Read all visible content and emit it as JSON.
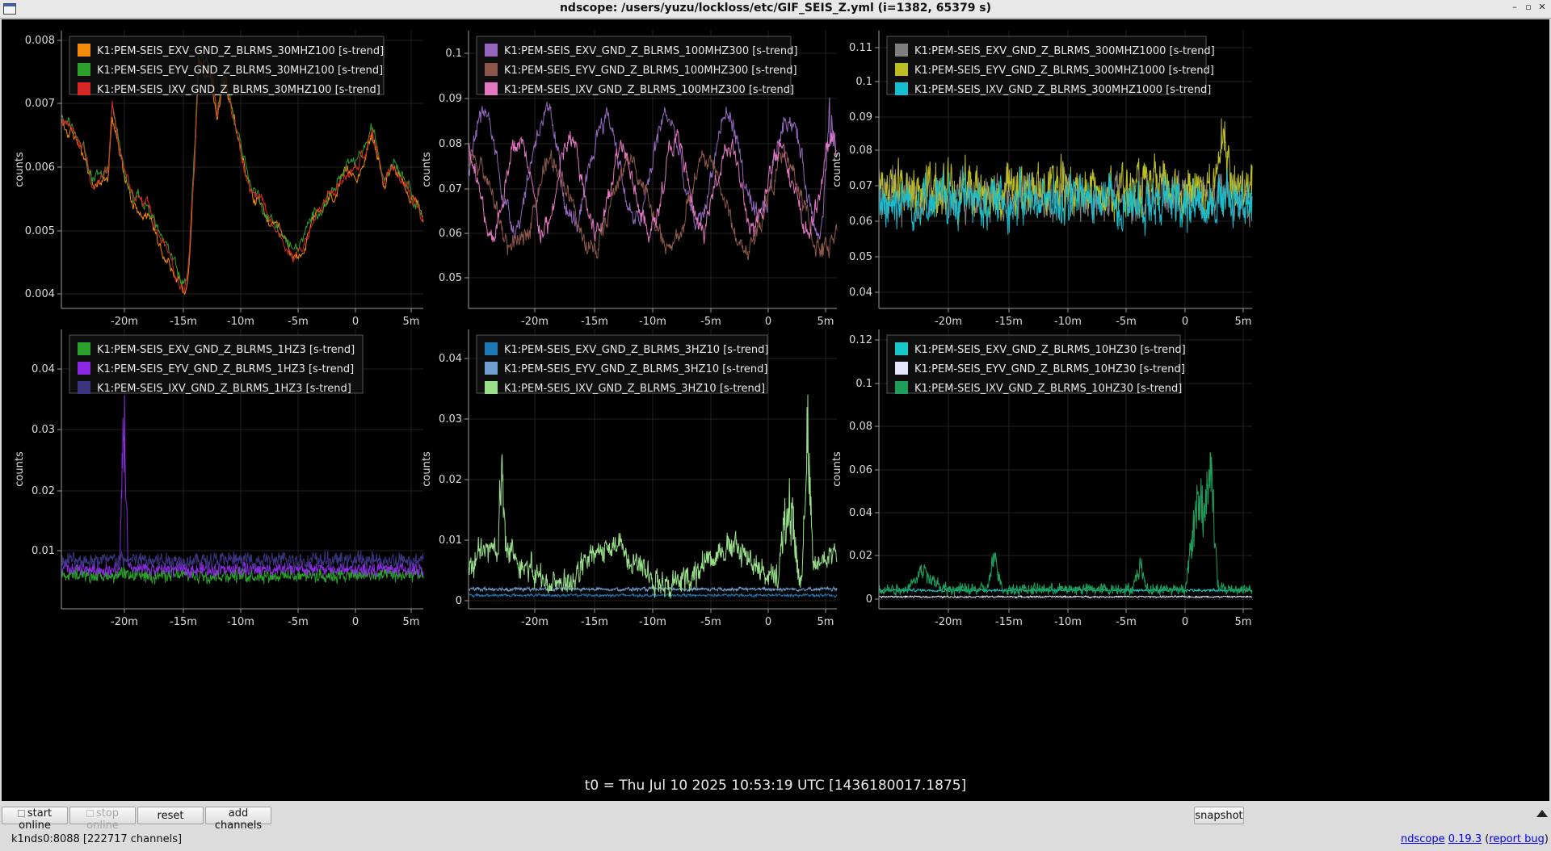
{
  "window": {
    "title": "ndscope: /users/yuzu/lockloss/etc/GIF_SEIS_Z.yml (i=1382, 65379 s)",
    "controls": [
      "–",
      "▫",
      "✕"
    ]
  },
  "plots": [
    {
      "ylabel": "counts",
      "yticks": [
        "0.004",
        "0.005",
        "0.006",
        "0.007",
        "0.008"
      ],
      "ylim": [
        0.00375,
        0.00805
      ],
      "xticks": [
        "-20m",
        "-15m",
        "-10m",
        "-5m",
        "0",
        "5m"
      ],
      "legend": [
        {
          "label": "K1:PEM-SEIS_EXV_GND_Z_BLRMS_30MHZ100 [s-trend]",
          "color": "#f58b0c"
        },
        {
          "label": "K1:PEM-SEIS_EYV_GND_Z_BLRMS_30MHZ100 [s-trend]",
          "color": "#2ca02c"
        },
        {
          "label": "K1:PEM-SEIS_IXV_GND_Z_BLRMS_30MHZ100 [s-trend]",
          "color": "#d62728"
        }
      ]
    },
    {
      "ylabel": "counts",
      "yticks": [
        "0.05",
        "0.06",
        "0.07",
        "0.08",
        "0.09",
        "0.1"
      ],
      "ylim": [
        0.043,
        0.105
      ],
      "xticks": [
        "-20m",
        "-15m",
        "-10m",
        "-5m",
        "0",
        "5m"
      ],
      "legend": [
        {
          "label": "K1:PEM-SEIS_EXV_GND_Z_BLRMS_100MHZ300 [s-trend]",
          "color": "#9467bd"
        },
        {
          "label": "K1:PEM-SEIS_EYV_GND_Z_BLRMS_100MHZ300 [s-trend]",
          "color": "#8c564b"
        },
        {
          "label": "K1:PEM-SEIS_IXV_GND_Z_BLRMS_100MHZ300 [s-trend]",
          "color": "#e377c2"
        }
      ]
    },
    {
      "ylabel": "counts",
      "yticks": [
        "0.04",
        "0.05",
        "0.06",
        "0.07",
        "0.08",
        "0.09",
        "0.1",
        "0.11"
      ],
      "ylim": [
        0.037,
        0.114
      ],
      "xticks": [
        "-20m",
        "-15m",
        "-10m",
        "-5m",
        "0",
        "5m"
      ],
      "legend": [
        {
          "label": "K1:PEM-SEIS_EXV_GND_Z_BLRMS_300MHZ1000 [s-trend]",
          "color": "#7f7f7f"
        },
        {
          "label": "K1:PEM-SEIS_EYV_GND_Z_BLRMS_300MHZ1000 [s-trend]",
          "color": "#bcbd22"
        },
        {
          "label": "K1:PEM-SEIS_IXV_GND_Z_BLRMS_300MHZ1000 [s-trend]",
          "color": "#17becf"
        }
      ]
    },
    {
      "ylabel": "counts",
      "yticks": [
        "0.01",
        "0.02",
        "0.03",
        "0.04"
      ],
      "ylim": [
        0.0,
        0.046
      ],
      "xticks": [
        "-20m",
        "-15m",
        "-10m",
        "-5m",
        "0",
        "5m"
      ],
      "legend": [
        {
          "label": "K1:PEM-SEIS_EXV_GND_Z_BLRMS_1HZ3 [s-trend]",
          "color": "#2ca02c"
        },
        {
          "label": "K1:PEM-SEIS_EYV_GND_Z_BLRMS_1HZ3 [s-trend]",
          "color": "#8a2be2"
        },
        {
          "label": "K1:PEM-SEIS_IXV_GND_Z_BLRMS_1HZ3 [s-trend]",
          "color": "#3b3580"
        }
      ]
    },
    {
      "ylabel": "counts",
      "yticks": [
        "0",
        "0.01",
        "0.02",
        "0.03",
        "0.04"
      ],
      "ylim": [
        -0.001,
        0.0445
      ],
      "xticks": [
        "-20m",
        "-15m",
        "-10m",
        "-5m",
        "0",
        "5m"
      ],
      "legend": [
        {
          "label": "K1:PEM-SEIS_EXV_GND_Z_BLRMS_3HZ10 [s-trend]",
          "color": "#1f77b4"
        },
        {
          "label": "K1:PEM-SEIS_EYV_GND_Z_BLRMS_3HZ10 [s-trend]",
          "color": "#6f9fd0"
        },
        {
          "label": "K1:PEM-SEIS_IXV_GND_Z_BLRMS_3HZ10 [s-trend]",
          "color": "#98df8a"
        }
      ]
    },
    {
      "ylabel": "counts",
      "yticks": [
        "0",
        "0.02",
        "0.04",
        "0.06",
        "0.08",
        "0.1",
        "0.12"
      ],
      "ylim": [
        -0.003,
        0.125
      ],
      "xticks": [
        "-20m",
        "-15m",
        "-10m",
        "-5m",
        "0",
        "5m"
      ],
      "legend": [
        {
          "label": "K1:PEM-SEIS_EXV_GND_Z_BLRMS_10HZ30 [s-trend]",
          "color": "#17c9c9"
        },
        {
          "label": "K1:PEM-SEIS_EYV_GND_Z_BLRMS_10HZ30 [s-trend]",
          "color": "#e6e6fa"
        },
        {
          "label": "K1:PEM-SEIS_IXV_GND_Z_BLRMS_10HZ30 [s-trend]",
          "color": "#1e9e5a"
        }
      ]
    }
  ],
  "t0_label": "t0 = Thu Jul 10 2025 10:53:19 UTC [1436180017.1875]",
  "toolbar": {
    "start_online": "start online",
    "stop_online": "stop online",
    "reset": "reset",
    "add_channels": "add channels",
    "snapshot": "snapshot"
  },
  "status": {
    "left": "k1nds0:8088  [222717 channels]",
    "app_name": "ndscope",
    "version": "0.19.3",
    "report_bug": "report bug"
  }
}
